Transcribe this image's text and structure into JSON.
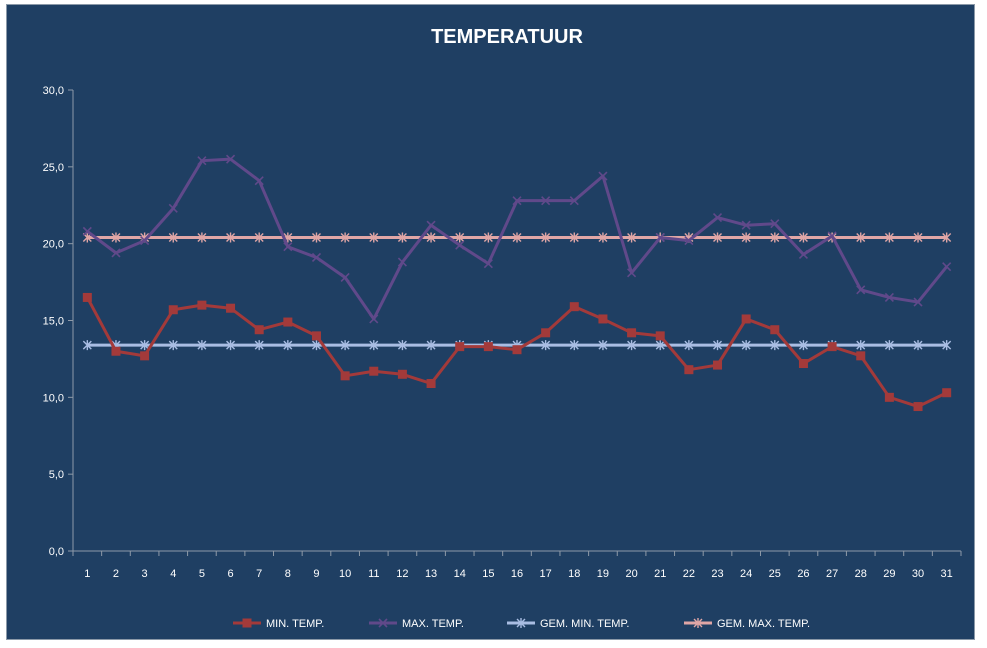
{
  "chart_data": {
    "type": "line",
    "title": "TEMPERATUUR",
    "xlabel": "",
    "ylabel": "",
    "categories": [
      "1",
      "2",
      "3",
      "4",
      "5",
      "6",
      "7",
      "8",
      "9",
      "10",
      "11",
      "12",
      "13",
      "14",
      "15",
      "16",
      "17",
      "18",
      "19",
      "20",
      "21",
      "22",
      "23",
      "24",
      "25",
      "26",
      "27",
      "28",
      "29",
      "30",
      "31"
    ],
    "ylim": [
      0,
      30
    ],
    "yticks": [
      "0,0",
      "5,0",
      "10,0",
      "15,0",
      "20,0",
      "25,0",
      "30,0"
    ],
    "ytick_values": [
      0,
      5,
      10,
      15,
      20,
      25,
      30
    ],
    "grid": false,
    "legend_position": "bottom",
    "series": [
      {
        "name": "MIN. TEMP.",
        "color": "#a33a3a",
        "marker": "square",
        "values": [
          16.5,
          13.0,
          12.7,
          15.7,
          16.0,
          15.8,
          14.4,
          14.9,
          14.0,
          11.4,
          11.7,
          11.5,
          10.9,
          13.3,
          13.3,
          13.1,
          14.2,
          15.9,
          15.1,
          14.2,
          14.0,
          11.8,
          12.1,
          15.1,
          14.4,
          12.2,
          13.3,
          12.7,
          10.0,
          9.4,
          10.3
        ]
      },
      {
        "name": "MAX. TEMP.",
        "color": "#60498a",
        "marker": "x",
        "values": [
          20.8,
          19.4,
          20.2,
          22.3,
          25.4,
          25.5,
          24.1,
          19.8,
          19.1,
          17.8,
          15.1,
          18.8,
          21.2,
          19.9,
          18.7,
          22.8,
          22.8,
          22.8,
          24.4,
          18.1,
          20.4,
          20.2,
          21.7,
          21.2,
          21.3,
          19.3,
          20.5,
          17.0,
          16.5,
          16.2,
          18.5
        ]
      },
      {
        "name": "GEM. MIN. TEMP.",
        "color": "#a9bde3",
        "marker": "star",
        "values": [
          13.4,
          13.4,
          13.4,
          13.4,
          13.4,
          13.4,
          13.4,
          13.4,
          13.4,
          13.4,
          13.4,
          13.4,
          13.4,
          13.4,
          13.4,
          13.4,
          13.4,
          13.4,
          13.4,
          13.4,
          13.4,
          13.4,
          13.4,
          13.4,
          13.4,
          13.4,
          13.4,
          13.4,
          13.4,
          13.4,
          13.4
        ]
      },
      {
        "name": "GEM. MAX. TEMP.",
        "color": "#e0a6a6",
        "marker": "star",
        "values": [
          20.4,
          20.4,
          20.4,
          20.4,
          20.4,
          20.4,
          20.4,
          20.4,
          20.4,
          20.4,
          20.4,
          20.4,
          20.4,
          20.4,
          20.4,
          20.4,
          20.4,
          20.4,
          20.4,
          20.4,
          20.4,
          20.4,
          20.4,
          20.4,
          20.4,
          20.4,
          20.4,
          20.4,
          20.4,
          20.4,
          20.4
        ]
      }
    ]
  }
}
